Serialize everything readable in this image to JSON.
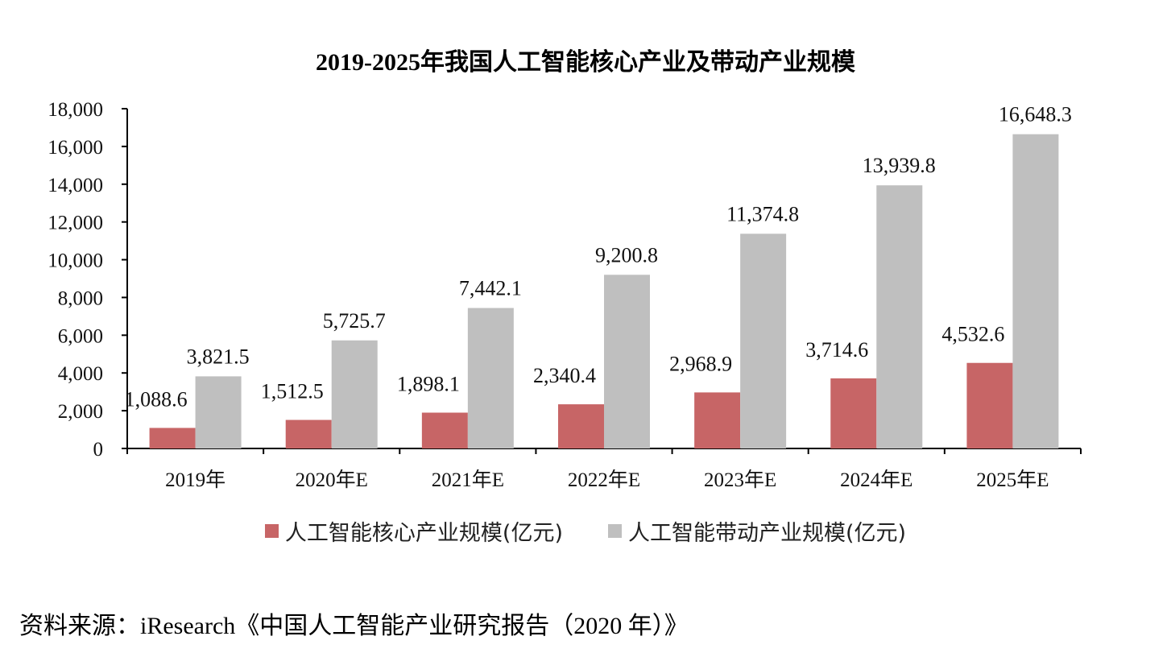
{
  "chart_data": {
    "type": "bar",
    "title": "2019-2025年我国人工智能核心产业及带动产业规模",
    "categories": [
      "2019年",
      "2020年E",
      "2021年E",
      "2022年E",
      "2023年E",
      "2024年E",
      "2025年E"
    ],
    "series": [
      {
        "name": "人工智能核心产业规模(亿元)",
        "color": "#C76566",
        "values": [
          1088.6,
          1512.5,
          1898.1,
          2340.4,
          2968.9,
          3714.6,
          4532.6
        ],
        "labels": [
          "1,088.6",
          "1,512.5",
          "1,898.1",
          "2,340.4",
          "2,968.9",
          "3,714.6",
          "4,532.6"
        ]
      },
      {
        "name": "人工智能带动产业规模(亿元)",
        "color": "#BFBFBF",
        "values": [
          3821.5,
          5725.7,
          7442.1,
          9200.8,
          11374.8,
          13939.8,
          16648.3
        ],
        "labels": [
          "3,821.5",
          "5,725.7",
          "7,442.1",
          "9,200.8",
          "11,374.8",
          "13,939.8",
          "16,648.3"
        ]
      }
    ],
    "ylim": [
      0,
      18000
    ],
    "yticks": [
      0,
      2000,
      4000,
      6000,
      8000,
      10000,
      12000,
      14000,
      16000,
      18000
    ],
    "ytick_labels": [
      "0",
      "2,000",
      "4,000",
      "6,000",
      "8,000",
      "10,000",
      "12,000",
      "14,000",
      "16,000",
      "18,000"
    ],
    "xlabel": "",
    "ylabel": "",
    "grid": false,
    "legend_position": "bottom"
  },
  "source": "资料来源：iResearch《中国人工智能产业研究报告（2020 年）》"
}
